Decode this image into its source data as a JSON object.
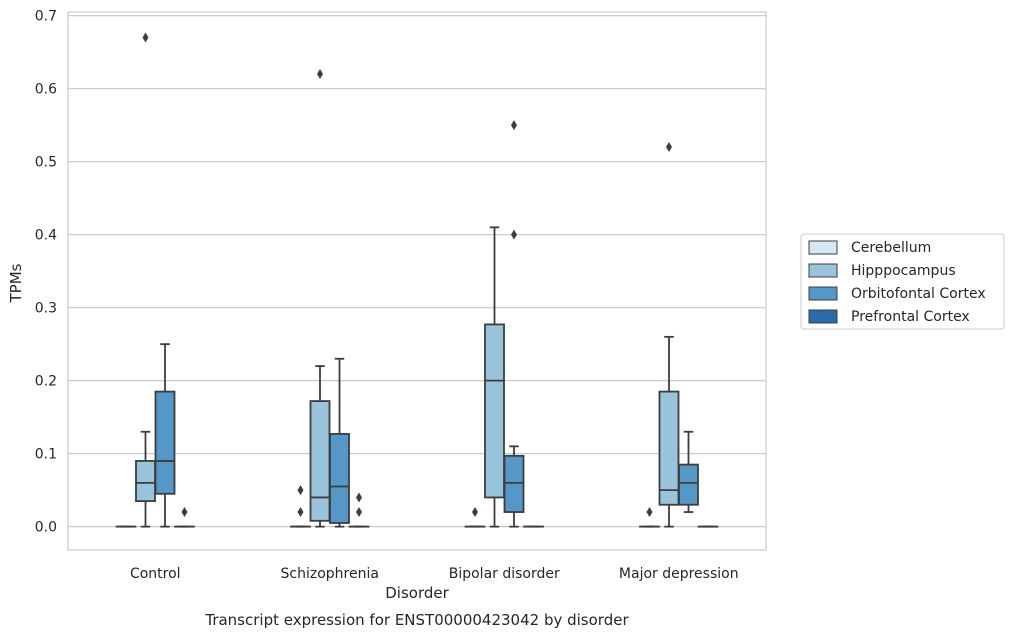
{
  "chart_data": {
    "type": "boxplot",
    "caption": "Transcript expression for ENST00000423042 by disorder",
    "xlabel": "Disorder",
    "ylabel": "TPMs",
    "ylim": [
      -0.032,
      0.705
    ],
    "yticks": [
      "0.0",
      "0.1",
      "0.2",
      "0.3",
      "0.4",
      "0.5",
      "0.6",
      "0.7"
    ],
    "grid": "horizontal",
    "legend_position": "right",
    "categories": [
      "Control",
      "Schizophrenia",
      "Bipolar disorder",
      "Major depression"
    ],
    "series": [
      {
        "name": "Cerebellum",
        "color": "#d6e6f4",
        "boxes": [
          {
            "whislo": 0,
            "q1": 0,
            "med": 0,
            "q3": 0,
            "whishi": 0,
            "fliers": []
          },
          {
            "whislo": 0,
            "q1": 0,
            "med": 0,
            "q3": 0,
            "whishi": 0,
            "fliers": [
              0.02,
              0.05
            ]
          },
          {
            "whislo": 0,
            "q1": 0,
            "med": 0,
            "q3": 0,
            "whishi": 0,
            "fliers": [
              0.02
            ]
          },
          {
            "whislo": 0,
            "q1": 0,
            "med": 0,
            "q3": 0,
            "whishi": 0,
            "fliers": [
              0.02
            ]
          }
        ]
      },
      {
        "name": "Hipppocampus",
        "color": "#9ac3dc",
        "boxes": [
          {
            "whislo": 0,
            "q1": 0.035,
            "med": 0.06,
            "q3": 0.09,
            "whishi": 0.13,
            "fliers": [
              0.67
            ]
          },
          {
            "whislo": 0,
            "q1": 0.008,
            "med": 0.04,
            "q3": 0.172,
            "whishi": 0.22,
            "fliers": [
              0.62
            ]
          },
          {
            "whislo": 0,
            "q1": 0.04,
            "med": 0.2,
            "q3": 0.277,
            "whishi": 0.41,
            "fliers": []
          },
          {
            "whislo": 0,
            "q1": 0.03,
            "med": 0.05,
            "q3": 0.185,
            "whishi": 0.26,
            "fliers": [
              0.52
            ]
          }
        ]
      },
      {
        "name": "Orbitofontal Cortex",
        "color": "#5597c6",
        "boxes": [
          {
            "whislo": 0,
            "q1": 0.045,
            "med": 0.09,
            "q3": 0.185,
            "whishi": 0.25,
            "fliers": []
          },
          {
            "whislo": 0,
            "q1": 0.005,
            "med": 0.055,
            "q3": 0.127,
            "whishi": 0.23,
            "fliers": []
          },
          {
            "whislo": 0,
            "q1": 0.02,
            "med": 0.06,
            "q3": 0.097,
            "whishi": 0.11,
            "fliers": [
              0.4,
              0.55
            ]
          },
          {
            "whislo": 0.02,
            "q1": 0.03,
            "med": 0.06,
            "q3": 0.085,
            "whishi": 0.13,
            "fliers": []
          }
        ]
      },
      {
        "name": "Prefrontal Cortex",
        "color": "#2b6ba7",
        "boxes": [
          {
            "whislo": 0,
            "q1": 0,
            "med": 0,
            "q3": 0,
            "whishi": 0,
            "fliers": [
              0.02
            ]
          },
          {
            "whislo": 0,
            "q1": 0,
            "med": 0,
            "q3": 0,
            "whishi": 0,
            "fliers": [
              0.02,
              0.04
            ]
          },
          {
            "whislo": 0,
            "q1": 0,
            "med": 0,
            "q3": 0,
            "whishi": 0,
            "fliers": []
          },
          {
            "whislo": 0,
            "q1": 0,
            "med": 0,
            "q3": 0,
            "whishi": 0,
            "fliers": []
          }
        ]
      }
    ]
  }
}
